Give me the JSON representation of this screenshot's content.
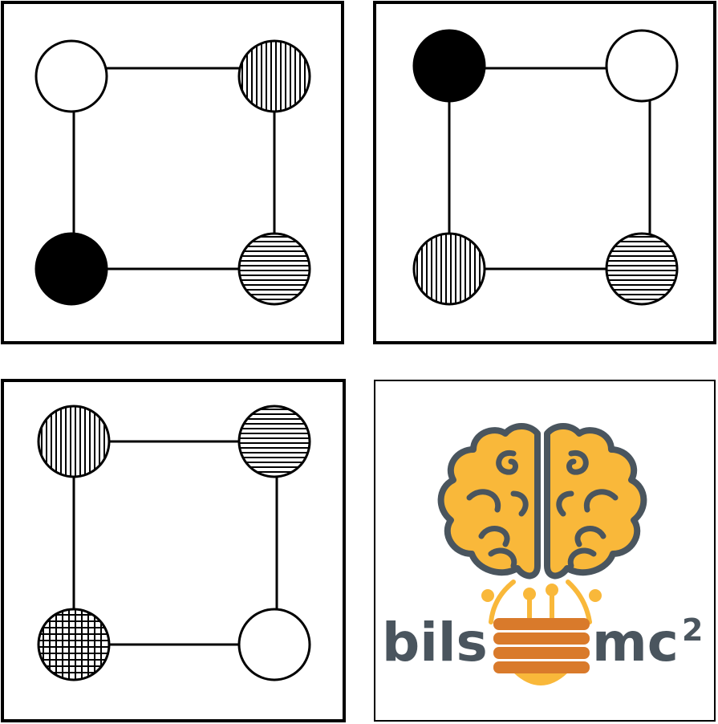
{
  "panels": [
    {
      "id": "panel-1",
      "nodes": [
        {
          "pos": "top-left",
          "fill": "empty"
        },
        {
          "pos": "top-right",
          "fill": "vertical-stripes"
        },
        {
          "pos": "bottom-left",
          "fill": "solid-black"
        },
        {
          "pos": "bottom-right",
          "fill": "horizontal-stripes"
        }
      ]
    },
    {
      "id": "panel-2",
      "nodes": [
        {
          "pos": "top-left",
          "fill": "solid-black"
        },
        {
          "pos": "top-right",
          "fill": "empty"
        },
        {
          "pos": "bottom-left",
          "fill": "vertical-stripes"
        },
        {
          "pos": "bottom-right",
          "fill": "horizontal-stripes"
        }
      ]
    },
    {
      "id": "panel-3",
      "nodes": [
        {
          "pos": "top-left",
          "fill": "vertical-stripes"
        },
        {
          "pos": "top-right",
          "fill": "horizontal-stripes"
        },
        {
          "pos": "bottom-left",
          "fill": "grid"
        },
        {
          "pos": "bottom-right",
          "fill": "empty"
        }
      ]
    }
  ],
  "logo": {
    "text_left": "bils",
    "text_right": "mc",
    "superscript": "2",
    "colors": {
      "brain": "#f9b83a",
      "outline": "#4a555e",
      "bulb_base": "#d97a2b",
      "text": "#4a555e"
    }
  }
}
